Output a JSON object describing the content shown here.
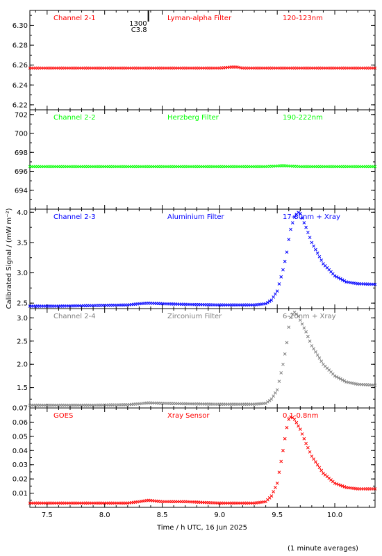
{
  "chart_data": {
    "type": "scatter",
    "xlabel": "Time / h UTC, 16 Jun 2025",
    "ylabel": "Calibrated Signal / (mW m⁻²)",
    "footnote": "(1 minute averages)",
    "xlim": [
      7.35,
      10.35
    ],
    "x_ticks": [
      7.5,
      8.0,
      8.5,
      9.0,
      9.5,
      10.0
    ],
    "x_tick_labels": [
      "7.5",
      "8.0",
      "8.5",
      "9.0",
      "9.5",
      "10.0"
    ],
    "event_marker": {
      "x": 8.38,
      "time_label": "1300",
      "class_label": "C3.8"
    },
    "panels": [
      {
        "channel": "Channel 2-1",
        "filter": "Lyman-alpha Filter",
        "band": "120-123nm",
        "color": "#ff0000",
        "ylim": [
          6.215,
          6.315
        ],
        "y_ticks": [
          6.22,
          6.24,
          6.26,
          6.28,
          6.3
        ],
        "y_tick_labels": [
          "6.22",
          "6.24",
          "6.26",
          "6.28",
          "6.30"
        ],
        "series": {
          "x": [
            7.35,
            7.5,
            7.8,
            8.1,
            8.4,
            8.7,
            9.0,
            9.1,
            9.15,
            9.2,
            9.4,
            9.7,
            10.0,
            10.35
          ],
          "y": [
            6.257,
            6.257,
            6.257,
            6.257,
            6.257,
            6.257,
            6.257,
            6.258,
            6.258,
            6.257,
            6.257,
            6.257,
            6.257,
            6.257
          ]
        }
      },
      {
        "channel": "Channel 2-2",
        "filter": "Herzberg Filter",
        "band": "190-222nm",
        "color": "#00ff00",
        "ylim": [
          692.0,
          702.5
        ],
        "y_ticks": [
          694,
          696,
          698,
          700,
          702
        ],
        "y_tick_labels": [
          "694",
          "696",
          "698",
          "700",
          "702"
        ],
        "series": {
          "x": [
            7.35,
            7.6,
            7.9,
            8.2,
            8.5,
            8.8,
            9.1,
            9.4,
            9.55,
            9.7,
            10.0,
            10.35
          ],
          "y": [
            696.5,
            696.5,
            696.5,
            696.5,
            696.5,
            696.5,
            696.5,
            696.5,
            696.6,
            696.5,
            696.5,
            696.5
          ]
        }
      },
      {
        "channel": "Channel 2-3",
        "filter": "Aluminium Filter",
        "band": "17-80nm + Xray",
        "color": "#0000ff",
        "ylim": [
          2.41,
          4.05
        ],
        "y_ticks": [
          2.5,
          3.0,
          3.5,
          4.0
        ],
        "y_tick_labels": [
          "2.5",
          "3.0",
          "3.5",
          "4.0"
        ],
        "series": {
          "x": [
            7.35,
            7.6,
            7.9,
            8.2,
            8.3,
            8.38,
            8.5,
            8.7,
            9.0,
            9.3,
            9.4,
            9.45,
            9.5,
            9.55,
            9.58,
            9.6,
            9.62,
            9.65,
            9.68,
            9.7,
            9.75,
            9.8,
            9.9,
            10.0,
            10.1,
            10.2,
            10.35
          ],
          "y": [
            2.45,
            2.45,
            2.46,
            2.47,
            2.49,
            2.5,
            2.49,
            2.48,
            2.47,
            2.47,
            2.49,
            2.55,
            2.7,
            3.05,
            3.3,
            3.55,
            3.75,
            3.92,
            4.0,
            3.98,
            3.75,
            3.5,
            3.15,
            2.95,
            2.85,
            2.82,
            2.81
          ]
        }
      },
      {
        "channel": "Channel 2-4",
        "filter": "Zirconium Filter",
        "band": "6-20nm + Xray",
        "color": "#808080",
        "ylim": [
          1.06,
          3.2
        ],
        "y_ticks": [
          1.5,
          2.0,
          2.5,
          3.0
        ],
        "y_tick_labels": [
          "1.5",
          "2.0",
          "2.5",
          "3.0"
        ],
        "series": {
          "x": [
            7.35,
            7.6,
            7.9,
            8.2,
            8.3,
            8.38,
            8.5,
            8.7,
            9.0,
            9.3,
            9.4,
            9.45,
            9.5,
            9.55,
            9.58,
            9.6,
            9.62,
            9.65,
            9.68,
            9.7,
            9.75,
            9.8,
            9.9,
            10.0,
            10.1,
            10.2,
            10.35
          ],
          "y": [
            1.12,
            1.12,
            1.12,
            1.13,
            1.15,
            1.17,
            1.16,
            1.15,
            1.14,
            1.14,
            1.16,
            1.25,
            1.45,
            2.0,
            2.4,
            2.8,
            3.05,
            3.12,
            3.05,
            2.95,
            2.7,
            2.4,
            2.0,
            1.75,
            1.62,
            1.57,
            1.55
          ]
        }
      },
      {
        "channel": "GOES",
        "filter": "Xray Sensor",
        "band": "0.1-0.8nm",
        "color": "#ff0000",
        "ylim": [
          0.0,
          0.07
        ],
        "y_ticks": [
          0.01,
          0.02,
          0.03,
          0.04,
          0.05,
          0.06,
          0.07
        ],
        "y_tick_labels": [
          "0.01",
          "0.02",
          "0.03",
          "0.04",
          "0.05",
          "0.06",
          "0.07"
        ],
        "series": {
          "x": [
            7.35,
            7.6,
            7.9,
            8.2,
            8.3,
            8.38,
            8.5,
            8.7,
            9.0,
            9.3,
            9.4,
            9.45,
            9.5,
            9.55,
            9.58,
            9.6,
            9.62,
            9.65,
            9.7,
            9.75,
            9.8,
            9.9,
            10.0,
            10.1,
            10.2,
            10.35
          ],
          "y": [
            0.003,
            0.003,
            0.003,
            0.003,
            0.004,
            0.005,
            0.004,
            0.004,
            0.003,
            0.003,
            0.004,
            0.008,
            0.017,
            0.04,
            0.055,
            0.062,
            0.064,
            0.062,
            0.055,
            0.045,
            0.036,
            0.024,
            0.017,
            0.014,
            0.013,
            0.013
          ]
        }
      }
    ]
  }
}
